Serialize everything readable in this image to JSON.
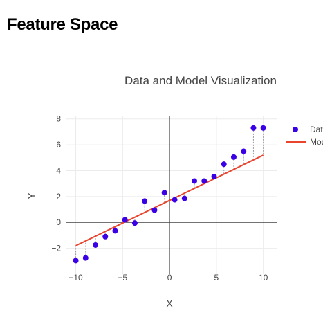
{
  "page": {
    "heading": "Feature Space"
  },
  "chart_data": {
    "type": "scatter",
    "title": "Data and Model Visualization",
    "xlabel": "X",
    "ylabel": "Y",
    "xlim": [
      -11,
      11.5
    ],
    "ylim": [
      -4,
      8.2
    ],
    "xticks": [
      -10,
      -5,
      0,
      5,
      10
    ],
    "yticks": [
      -2,
      0,
      2,
      4,
      6,
      8
    ],
    "grid": true,
    "legend_position": "top-right",
    "series": [
      {
        "name": "Data",
        "kind": "markers",
        "color": "#3a00e6",
        "x": [
          -10,
          -8.95,
          -7.9,
          -6.85,
          -5.8,
          -4.75,
          -3.7,
          -2.65,
          -1.6,
          -0.55,
          0.55,
          1.6,
          2.65,
          3.7,
          4.75,
          5.8,
          6.85,
          7.9,
          8.95,
          10
        ],
        "y": [
          -2.95,
          -2.75,
          -1.75,
          -1.1,
          -0.65,
          0.2,
          -0.05,
          1.65,
          0.95,
          2.3,
          1.75,
          1.85,
          3.2,
          3.2,
          3.55,
          4.5,
          5.05,
          5.5,
          7.3,
          7.3
        ]
      },
      {
        "name": "Model",
        "kind": "line",
        "color": "#e8442e",
        "x": [
          -10,
          10
        ],
        "y": [
          -1.8,
          5.2
        ]
      }
    ],
    "residuals": {
      "style": "dashed",
      "color": "#999999"
    }
  }
}
